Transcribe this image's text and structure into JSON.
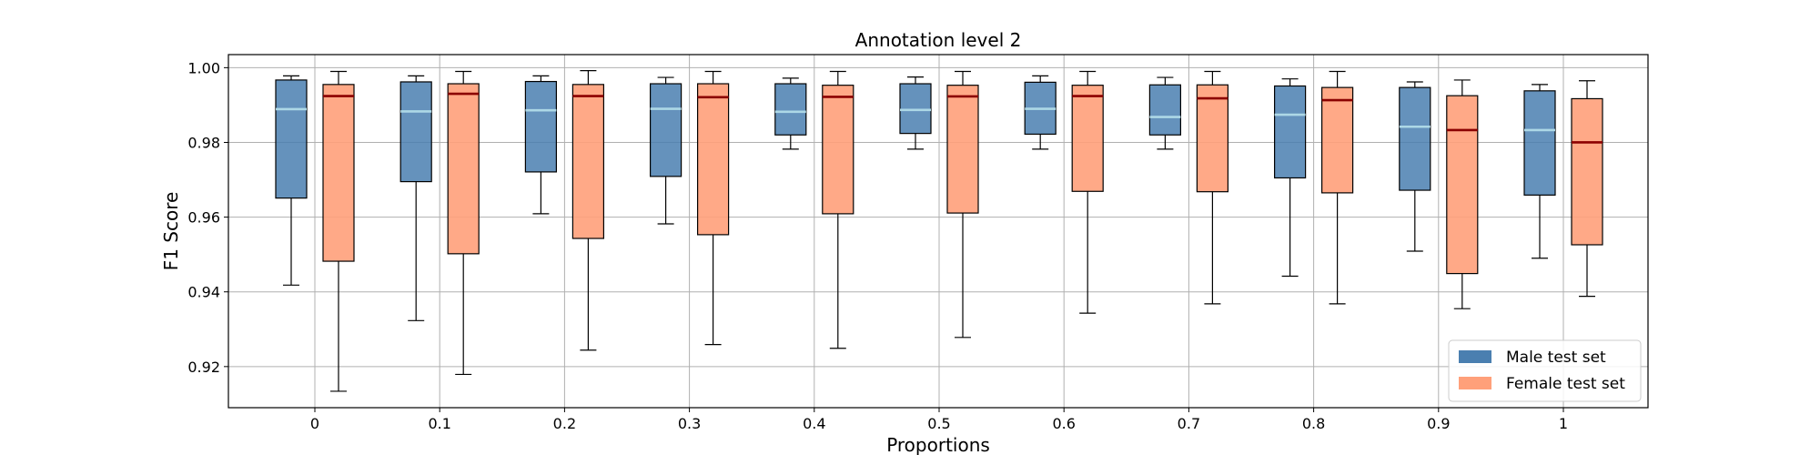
{
  "chart_data": {
    "type": "box",
    "title": "Annotation level 2",
    "xlabel": "Proportions",
    "ylabel": "F1 Score",
    "categories": [
      "0",
      "0.1",
      "0.2",
      "0.3",
      "0.4",
      "0.5",
      "0.6",
      "0.7",
      "0.8",
      "0.9",
      "1"
    ],
    "ylim": [
      0.909,
      1.0035
    ],
    "yticks": [
      0.92,
      0.94,
      0.96,
      0.98,
      1.0
    ],
    "ytick_labels": [
      "0.92",
      "0.94",
      "0.96",
      "0.98",
      "1.00"
    ],
    "grid": true,
    "legend_position": "lower-right",
    "series": [
      {
        "name": "Male test set",
        "color": "#4a7fb0",
        "median_color": "#add8e6",
        "boxes": [
          {
            "whislo": 0.9418,
            "q1": 0.9651,
            "median": 0.9889,
            "q3": 0.9967,
            "whishi": 0.9978
          },
          {
            "whislo": 0.9323,
            "q1": 0.9695,
            "median": 0.9883,
            "q3": 0.9962,
            "whishi": 0.9978
          },
          {
            "whislo": 0.9609,
            "q1": 0.9721,
            "median": 0.9886,
            "q3": 0.9963,
            "whishi": 0.9978
          },
          {
            "whislo": 0.9582,
            "q1": 0.9709,
            "median": 0.989,
            "q3": 0.9957,
            "whishi": 0.9974
          },
          {
            "whislo": 0.9782,
            "q1": 0.982,
            "median": 0.9882,
            "q3": 0.9957,
            "whishi": 0.9972
          },
          {
            "whislo": 0.9782,
            "q1": 0.9824,
            "median": 0.9887,
            "q3": 0.9957,
            "whishi": 0.9975
          },
          {
            "whislo": 0.9782,
            "q1": 0.9822,
            "median": 0.989,
            "q3": 0.9961,
            "whishi": 0.9978
          },
          {
            "whislo": 0.9782,
            "q1": 0.982,
            "median": 0.9868,
            "q3": 0.9954,
            "whishi": 0.9974
          },
          {
            "whislo": 0.9442,
            "q1": 0.9705,
            "median": 0.9874,
            "q3": 0.9951,
            "whishi": 0.997
          },
          {
            "whislo": 0.9509,
            "q1": 0.9672,
            "median": 0.9842,
            "q3": 0.9947,
            "whishi": 0.9962
          },
          {
            "whislo": 0.949,
            "q1": 0.9659,
            "median": 0.9833,
            "q3": 0.9938,
            "whishi": 0.9955
          }
        ]
      },
      {
        "name": "Female test set",
        "color": "#ffa07a",
        "median_color": "#8b0000",
        "boxes": [
          {
            "whislo": 0.9134,
            "q1": 0.9482,
            "median": 0.9924,
            "q3": 0.9955,
            "whishi": 0.999
          },
          {
            "whislo": 0.9179,
            "q1": 0.9502,
            "median": 0.993,
            "q3": 0.9957,
            "whishi": 0.999
          },
          {
            "whislo": 0.9244,
            "q1": 0.9543,
            "median": 0.9924,
            "q3": 0.9955,
            "whishi": 0.9992
          },
          {
            "whislo": 0.9259,
            "q1": 0.9553,
            "median": 0.9921,
            "q3": 0.9957,
            "whishi": 0.999
          },
          {
            "whislo": 0.9249,
            "q1": 0.9609,
            "median": 0.9922,
            "q3": 0.9953,
            "whishi": 0.999
          },
          {
            "whislo": 0.9278,
            "q1": 0.9611,
            "median": 0.9923,
            "q3": 0.9953,
            "whishi": 0.999
          },
          {
            "whislo": 0.9343,
            "q1": 0.9669,
            "median": 0.9924,
            "q3": 0.9953,
            "whishi": 0.999
          },
          {
            "whislo": 0.9368,
            "q1": 0.9668,
            "median": 0.9918,
            "q3": 0.9954,
            "whishi": 0.999
          },
          {
            "whislo": 0.9368,
            "q1": 0.9665,
            "median": 0.9913,
            "q3": 0.9947,
            "whishi": 0.999
          },
          {
            "whislo": 0.9355,
            "q1": 0.9449,
            "median": 0.9833,
            "q3": 0.9925,
            "whishi": 0.9967
          },
          {
            "whislo": 0.9388,
            "q1": 0.9526,
            "median": 0.98,
            "q3": 0.9917,
            "whishi": 0.9965
          }
        ]
      }
    ]
  }
}
